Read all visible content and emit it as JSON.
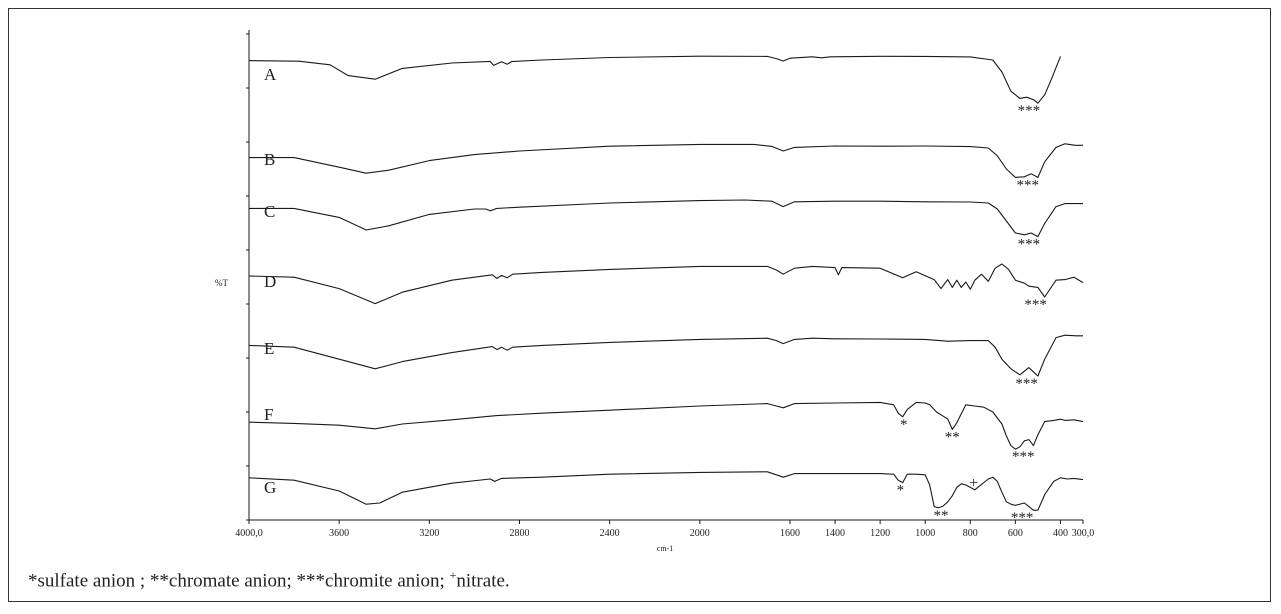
{
  "chart_data": {
    "type": "line",
    "title": "",
    "xlabel": "cm-1",
    "ylabel": "%T",
    "x_domain": [
      4000,
      300
    ],
    "x_ticks": [
      {
        "value": 4000,
        "label": "4000,0"
      },
      {
        "value": 3600,
        "label": "3600"
      },
      {
        "value": 3200,
        "label": "3200"
      },
      {
        "value": 2800,
        "label": "2800"
      },
      {
        "value": 2400,
        "label": "2400"
      },
      {
        "value": 2000,
        "label": "2000"
      },
      {
        "value": 1600,
        "label": "1600"
      },
      {
        "value": 1400,
        "label": "1400"
      },
      {
        "value": 1200,
        "label": "1200"
      },
      {
        "value": 1000,
        "label": "1000"
      },
      {
        "value": 800,
        "label": "800"
      },
      {
        "value": 600,
        "label": "600"
      },
      {
        "value": 400,
        "label": "400"
      },
      {
        "value": 300,
        "label": "300,0"
      }
    ],
    "y_ticks_count": 10,
    "grid": false,
    "series": [
      {
        "name": "A",
        "x": [
          4000,
          3780,
          3640,
          3560,
          3440,
          3320,
          3100,
          2930,
          2915,
          2880,
          2855,
          2835,
          2700,
          2400,
          2000,
          1700,
          1660,
          1630,
          1600,
          1500,
          1460,
          1420,
          1200,
          1000,
          800,
          700,
          660,
          620,
          580,
          550,
          520,
          500,
          470,
          440,
          400
        ],
        "y": [
          -0.5,
          -1.0,
          -4,
          -13,
          -16,
          -7,
          -2.5,
          -1.2,
          -4.5,
          -1.5,
          -3.5,
          -1.3,
          0,
          2.1,
          3.2,
          3.0,
          1.2,
          -0.8,
          1.5,
          2.7,
          1.8,
          2.7,
          3.1,
          3.0,
          2.6,
          0,
          -10,
          -26,
          -32,
          -31,
          -33,
          -36,
          -29,
          -16,
          3
        ]
      },
      {
        "name": "B",
        "x": [
          4000,
          3800,
          3600,
          3480,
          3380,
          3200,
          3000,
          2800,
          2400,
          2000,
          1760,
          1680,
          1630,
          1580,
          1400,
          1200,
          1000,
          800,
          720,
          680,
          640,
          600,
          560,
          530,
          500,
          470,
          420,
          380,
          330,
          300
        ],
        "y": [
          -10.5,
          -10.5,
          -18.5,
          -23.5,
          -21,
          -13,
          -8,
          -5,
          -1,
          0.5,
          0.5,
          -1.2,
          -5,
          -2,
          -0.8,
          -1.0,
          -0.8,
          -1.3,
          -2.5,
          -9,
          -20,
          -27,
          -26.5,
          -24,
          -27,
          -14,
          -2,
          1,
          -0.3,
          -0.2
        ]
      },
      {
        "name": "C",
        "x": [
          4000,
          3800,
          3600,
          3480,
          3380,
          3200,
          3000,
          2950,
          2930,
          2900,
          2800,
          2400,
          2000,
          1800,
          1680,
          1630,
          1580,
          1400,
          1200,
          1000,
          800,
          720,
          680,
          640,
          600,
          560,
          530,
          500,
          470,
          420,
          380,
          330,
          300
        ],
        "y": [
          -9.5,
          -9.5,
          -17,
          -27.5,
          -24,
          -14.5,
          -10,
          -10,
          -11.5,
          -9.5,
          -8.5,
          -5,
          -3,
          -2.5,
          -3.5,
          -8,
          -4,
          -3.5,
          -3.5,
          -4,
          -4.2,
          -5,
          -10,
          -20,
          -30,
          -31.5,
          -30,
          -33,
          -22,
          -8,
          -5.5,
          -5.5,
          -5.5
        ]
      },
      {
        "name": "D",
        "x": [
          4000,
          3800,
          3600,
          3440,
          3320,
          3100,
          2920,
          2900,
          2880,
          2855,
          2830,
          2700,
          2400,
          2000,
          1700,
          1660,
          1630,
          1580,
          1500,
          1400,
          1385,
          1370,
          1200,
          1100,
          1040,
          960,
          930,
          900,
          880,
          860,
          840,
          820,
          800,
          780,
          750,
          720,
          690,
          660,
          630,
          600,
          560,
          540,
          500,
          470,
          420,
          380,
          340,
          300
        ],
        "y": [
          -7.5,
          -8.5,
          -18,
          -30.5,
          -21,
          -11,
          -6.5,
          -9.5,
          -7,
          -9,
          -6,
          -4.5,
          -2,
          0.5,
          0.5,
          -2.5,
          -6,
          -1,
          0.5,
          -0.5,
          -6.5,
          -0.5,
          -1,
          -9,
          -4,
          -10.5,
          -18,
          -10.5,
          -17,
          -11,
          -17,
          -12.5,
          -18.5,
          -11,
          -6,
          -12,
          -1,
          2.5,
          -2,
          -11,
          -13.5,
          -16,
          -17,
          -25,
          -11,
          -10.5,
          -8.5,
          -13
        ]
      },
      {
        "name": "E",
        "x": [
          4000,
          3800,
          3600,
          3440,
          3320,
          3100,
          2920,
          2900,
          2880,
          2855,
          2830,
          2700,
          2400,
          2000,
          1700,
          1660,
          1630,
          1580,
          1500,
          1400,
          1200,
          1000,
          900,
          800,
          720,
          690,
          660,
          620,
          580,
          540,
          520,
          500,
          470,
          420,
          380,
          330,
          300
        ],
        "y": [
          -9.5,
          -11,
          -21,
          -29,
          -23,
          -15.5,
          -10.5,
          -13,
          -11,
          -13.5,
          -11,
          -9.5,
          -7,
          -4.5,
          -3.5,
          -5.5,
          -8,
          -4.5,
          -3.5,
          -4,
          -4.2,
          -4.5,
          -6,
          -5.5,
          -5.5,
          -11,
          -21,
          -29,
          -34,
          -28,
          -31.5,
          -35,
          -21,
          -3,
          -1,
          -1.5,
          -1.5
        ]
      },
      {
        "name": "F",
        "x": [
          4000,
          3800,
          3600,
          3440,
          3320,
          3100,
          2900,
          2700,
          2400,
          2000,
          1700,
          1660,
          1630,
          1580,
          1400,
          1200,
          1140,
          1120,
          1100,
          1080,
          1040,
          1000,
          980,
          950,
          920,
          900,
          880,
          860,
          820,
          780,
          740,
          700,
          660,
          640,
          620,
          600,
          580,
          560,
          540,
          520,
          500,
          470,
          430,
          400,
          380,
          340,
          300
        ],
        "y": [
          -18.5,
          -19.5,
          -21,
          -24,
          -20,
          -16.5,
          -13,
          -11,
          -8.5,
          -5,
          -3,
          -5,
          -6.5,
          -3,
          -2.5,
          -2,
          -4,
          -11,
          -14,
          -8,
          -2,
          -2.5,
          -4,
          -10,
          -13.5,
          -16,
          -24.5,
          -19,
          -4,
          -5,
          -6,
          -10,
          -20,
          -30,
          -38,
          -41,
          -39,
          -34,
          -33,
          -38,
          -29,
          -18,
          -17,
          -16,
          -17,
          -16.5,
          -18
        ]
      },
      {
        "name": "G",
        "x": [
          4000,
          3800,
          3600,
          3480,
          3420,
          3320,
          3100,
          2930,
          2910,
          2880,
          2700,
          2400,
          2000,
          1700,
          1660,
          1630,
          1580,
          1400,
          1200,
          1140,
          1120,
          1100,
          1080,
          1040,
          1000,
          980,
          960,
          940,
          920,
          900,
          880,
          860,
          840,
          820,
          800,
          780,
          760,
          720,
          700,
          680,
          660,
          640,
          620,
          600,
          560,
          540,
          520,
          500,
          470,
          430,
          400,
          370,
          340,
          300
        ],
        "y": [
          -4,
          -6,
          -15,
          -26,
          -25,
          -16,
          -8.5,
          -5,
          -7,
          -4.5,
          -3.5,
          -1,
          0.5,
          1,
          -1.5,
          -3.5,
          -0.5,
          -0.5,
          -0.5,
          -1,
          -6,
          -8,
          -1,
          -1,
          -1.5,
          -10,
          -28,
          -29,
          -27.5,
          -24,
          -19,
          -12,
          -9,
          -10,
          -12,
          -14,
          -11,
          -5,
          -3.5,
          -7,
          -16,
          -24,
          -26,
          -27,
          -25,
          -28,
          -31,
          -31,
          -18,
          -7,
          -4,
          -5,
          -4.5,
          -5.5
        ]
      }
    ],
    "annotations": [
      {
        "series": "A",
        "x": 540,
        "text": "***"
      },
      {
        "series": "B",
        "x": 545,
        "text": "***"
      },
      {
        "series": "C",
        "x": 540,
        "text": "***"
      },
      {
        "series": "D",
        "x": 510,
        "text": "***"
      },
      {
        "series": "E",
        "x": 550,
        "text": "***"
      },
      {
        "series": "F",
        "x": 1095,
        "text": "*"
      },
      {
        "series": "F",
        "x": 880,
        "text": "**"
      },
      {
        "series": "F",
        "x": 565,
        "text": "***"
      },
      {
        "series": "G",
        "x": 1110,
        "text": "*"
      },
      {
        "series": "G",
        "x": 930,
        "text": "**"
      },
      {
        "series": "G",
        "x": 785,
        "text": "+"
      },
      {
        "series": "G",
        "x": 570,
        "text": "***"
      }
    ]
  },
  "caption": {
    "part1": "*sulfate anion ; **chromate anion; ***chromite anion; ",
    "sup": "+",
    "part2": "nitrate."
  },
  "colors": {
    "line": "#1a1a1a",
    "border": "#333333",
    "text": "#222222"
  }
}
